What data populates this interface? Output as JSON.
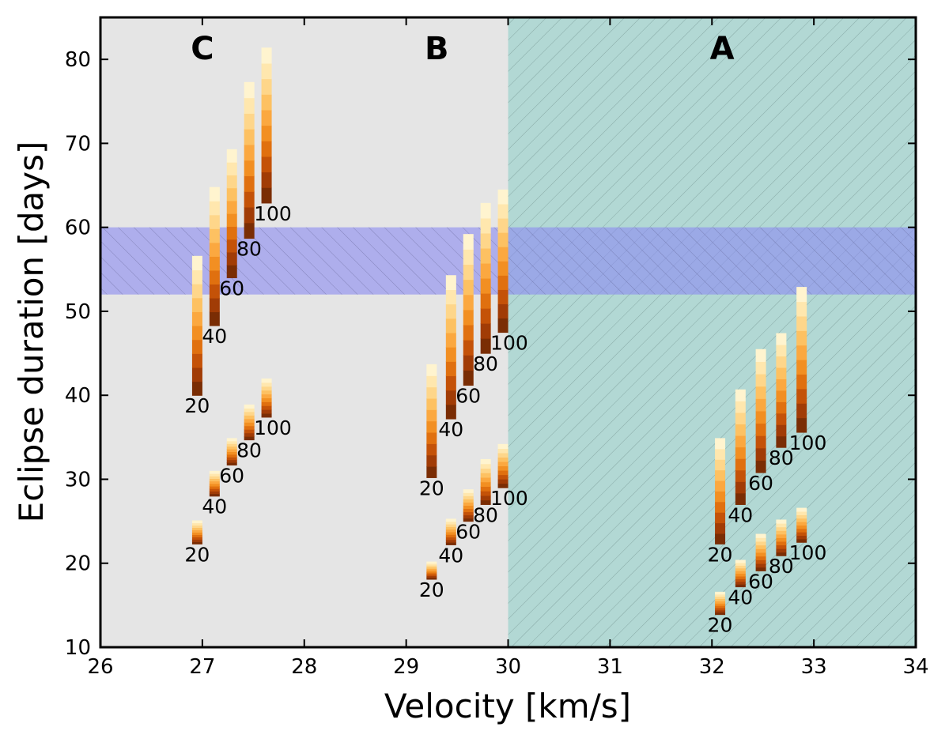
{
  "chart_data": {
    "type": "bar",
    "title": "",
    "xlabel": "Velocity [km/s]",
    "ylabel": "Eclipse duration [days]",
    "xlim": [
      26,
      34
    ],
    "ylim": [
      10,
      85
    ],
    "xticks": [
      26,
      27,
      28,
      29,
      30,
      31,
      32,
      33,
      34
    ],
    "yticks": [
      10,
      20,
      30,
      40,
      50,
      60,
      70,
      80
    ],
    "regions": [
      {
        "label": "C",
        "x_range": [
          26,
          30
        ],
        "color": "#e5e5e5",
        "hatched": false,
        "label_x": 27.0
      },
      {
        "label": "B",
        "x_range": [
          26,
          30
        ],
        "color": "#e5e5e5",
        "hatched": false,
        "label_x": 29.3
      },
      {
        "label": "A",
        "x_range": [
          30,
          34
        ],
        "color": "#b2d8d4",
        "hatched": true,
        "label_x": 32.1
      }
    ],
    "observed_band": {
      "y_range": [
        52,
        60
      ],
      "color": "#8c8cf0"
    },
    "bar_colors": [
      "#7a2d04",
      "#a13c06",
      "#c45208",
      "#e0700f",
      "#f28f22",
      "#fba840",
      "#fdc162",
      "#fed68a",
      "#ffe7ae",
      "#fff4cf"
    ],
    "groups": [
      {
        "name": "C-upper",
        "bars": [
          {
            "x": 26.95,
            "ymin": 40.0,
            "ymax": 56.6,
            "label": "20"
          },
          {
            "x": 27.12,
            "ymin": 48.3,
            "ymax": 64.8,
            "label": "40"
          },
          {
            "x": 27.29,
            "ymin": 54.0,
            "ymax": 69.3,
            "label": "60"
          },
          {
            "x": 27.46,
            "ymin": 58.7,
            "ymax": 77.3,
            "label": "80"
          },
          {
            "x": 27.63,
            "ymin": 62.9,
            "ymax": 81.4,
            "label": "100"
          }
        ]
      },
      {
        "name": "C-lower",
        "bars": [
          {
            "x": 26.95,
            "ymin": 22.3,
            "ymax": 25.1,
            "label": "20"
          },
          {
            "x": 27.12,
            "ymin": 28.0,
            "ymax": 31.0,
            "label": "40"
          },
          {
            "x": 27.29,
            "ymin": 31.7,
            "ymax": 34.9,
            "label": "60"
          },
          {
            "x": 27.46,
            "ymin": 34.7,
            "ymax": 38.9,
            "label": "80"
          },
          {
            "x": 27.63,
            "ymin": 37.4,
            "ymax": 42.0,
            "label": "100"
          }
        ]
      },
      {
        "name": "B-upper",
        "bars": [
          {
            "x": 29.25,
            "ymin": 30.2,
            "ymax": 43.7,
            "label": "20"
          },
          {
            "x": 29.44,
            "ymin": 37.2,
            "ymax": 54.3,
            "label": "40"
          },
          {
            "x": 29.61,
            "ymin": 41.2,
            "ymax": 59.2,
            "label": "60"
          },
          {
            "x": 29.78,
            "ymin": 45.0,
            "ymax": 62.9,
            "label": "80"
          },
          {
            "x": 29.95,
            "ymin": 47.5,
            "ymax": 64.5,
            "label": "100"
          }
        ]
      },
      {
        "name": "B-lower",
        "bars": [
          {
            "x": 29.25,
            "ymin": 18.1,
            "ymax": 20.2,
            "label": "20"
          },
          {
            "x": 29.44,
            "ymin": 22.2,
            "ymax": 25.3,
            "label": "40"
          },
          {
            "x": 29.61,
            "ymin": 25.0,
            "ymax": 28.8,
            "label": "60"
          },
          {
            "x": 29.78,
            "ymin": 27.0,
            "ymax": 32.4,
            "label": "80"
          },
          {
            "x": 29.95,
            "ymin": 29.0,
            "ymax": 34.2,
            "label": "100"
          }
        ]
      },
      {
        "name": "A-upper",
        "bars": [
          {
            "x": 32.08,
            "ymin": 22.3,
            "ymax": 34.9,
            "label": "20"
          },
          {
            "x": 32.28,
            "ymin": 27.0,
            "ymax": 40.7,
            "label": "40"
          },
          {
            "x": 32.48,
            "ymin": 30.8,
            "ymax": 45.5,
            "label": "60"
          },
          {
            "x": 32.68,
            "ymin": 33.8,
            "ymax": 47.4,
            "label": "80"
          },
          {
            "x": 32.88,
            "ymin": 35.6,
            "ymax": 52.9,
            "label": "100"
          }
        ]
      },
      {
        "name": "A-lower",
        "bars": [
          {
            "x": 32.08,
            "ymin": 13.9,
            "ymax": 16.6,
            "label": "20"
          },
          {
            "x": 32.28,
            "ymin": 17.2,
            "ymax": 20.4,
            "label": "40"
          },
          {
            "x": 32.48,
            "ymin": 19.1,
            "ymax": 23.5,
            "label": "60"
          },
          {
            "x": 32.68,
            "ymin": 20.9,
            "ymax": 25.2,
            "label": "80"
          },
          {
            "x": 32.88,
            "ymin": 22.5,
            "ymax": 26.6,
            "label": "100"
          }
        ]
      }
    ]
  }
}
